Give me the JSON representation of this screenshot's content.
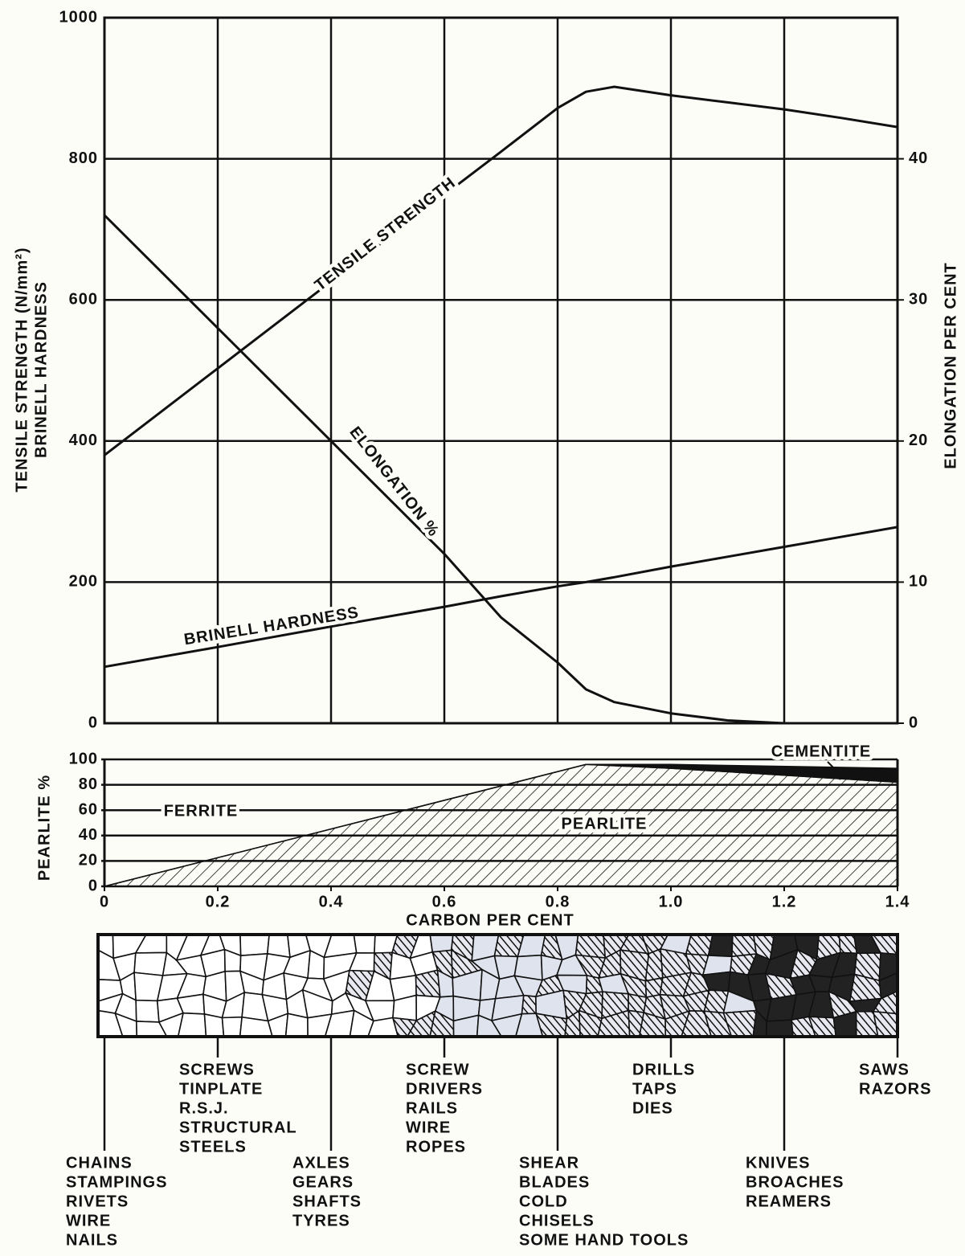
{
  "chart_data": [
    {
      "type": "line",
      "ylabel": [
        "TENSILE STRENGTH (N/mm²)",
        "BRINELL HARDNESS"
      ],
      "y2label": "ELONGATION PER CENT",
      "x": [
        0,
        0.2,
        0.4,
        0.6,
        0.7,
        0.8,
        0.85,
        0.9,
        1.0,
        1.1,
        1.2,
        1.3,
        1.4
      ],
      "xlim": [
        0,
        1.4
      ],
      "xticks": [
        0,
        0.2,
        0.4,
        0.6,
        0.8,
        1,
        1.2,
        1.4
      ],
      "ylim": [
        0,
        1000
      ],
      "yticks": [
        0,
        200,
        400,
        600,
        800,
        1000
      ],
      "y2lim": [
        0,
        50
      ],
      "y2ticks": [
        0,
        10,
        20,
        30,
        40
      ],
      "grid": true,
      "series": [
        {
          "name": "TENSILE STRENGTH",
          "color": "#111111",
          "values": [
            380,
            503,
            626,
            749,
            810,
            872,
            895,
            902,
            890,
            880,
            870,
            858,
            845
          ]
        },
        {
          "name": "BRINELL HARDNESS",
          "color": "#111111",
          "values": [
            80,
            108,
            137,
            165,
            180,
            194,
            200,
            207,
            222,
            236,
            250,
            264,
            278
          ]
        },
        {
          "name": "ELONGATION %",
          "color": "#111111",
          "axis": "y2",
          "values": [
            36,
            28,
            20,
            12,
            7.5,
            4.3,
            2.4,
            1.5,
            0.7,
            0.2,
            0,
            null,
            null
          ]
        }
      ]
    },
    {
      "type": "area",
      "ylabel": "PEARLITE %",
      "xlabel": "CARBON PER CENT",
      "annotation": "FERRITE",
      "x": [
        0,
        0.85,
        1.0,
        1.4
      ],
      "xlim": [
        0,
        1.4
      ],
      "xticks": [
        0,
        0.2,
        0.4,
        0.6,
        0.8,
        {
          "value": 1,
          "label": "1.0"
        },
        1.2,
        1.4
      ],
      "ylim": [
        0,
        100
      ],
      "yticks": [
        0,
        20,
        40,
        60,
        80,
        100
      ],
      "stacked": true,
      "series": [
        {
          "name": "PEARLITE",
          "color": "#111111",
          "values": [
            0,
            96,
            93,
            82
          ]
        },
        {
          "name": "CEMENTITE",
          "color": "#111111",
          "values": [
            0,
            0,
            3,
            11
          ]
        }
      ]
    }
  ],
  "applications": [
    {
      "carbon": 0,
      "lines": [
        "CHAINS",
        "STAMPINGS",
        "RIVETS",
        "WIRE",
        "NAILS"
      ]
    },
    {
      "carbon": 0.2,
      "lines": [
        "SCREWS",
        "TINPLATE",
        "R.S.J.",
        "STRUCTURAL",
        "STEELS"
      ]
    },
    {
      "carbon": 0.4,
      "lines": [
        "AXLES",
        "GEARS",
        "SHAFTS",
        "TYRES"
      ]
    },
    {
      "carbon": 0.6,
      "lines": [
        "SCREW",
        "DRIVERS",
        "RAILS",
        "WIRE",
        "ROPES"
      ]
    },
    {
      "carbon": 0.8,
      "lines": [
        "SHEAR",
        "BLADES",
        "COLD",
        "CHISELS",
        "SOME HAND TOOLS"
      ]
    },
    {
      "carbon": 1.0,
      "lines": [
        "DRILLS",
        "TAPS",
        "DIES"
      ]
    },
    {
      "carbon": 1.2,
      "lines": [
        "KNIVES",
        "BROACHES",
        "REAMERS"
      ]
    },
    {
      "carbon": 1.4,
      "lines": [
        "SAWS",
        "RAZORS"
      ]
    }
  ]
}
